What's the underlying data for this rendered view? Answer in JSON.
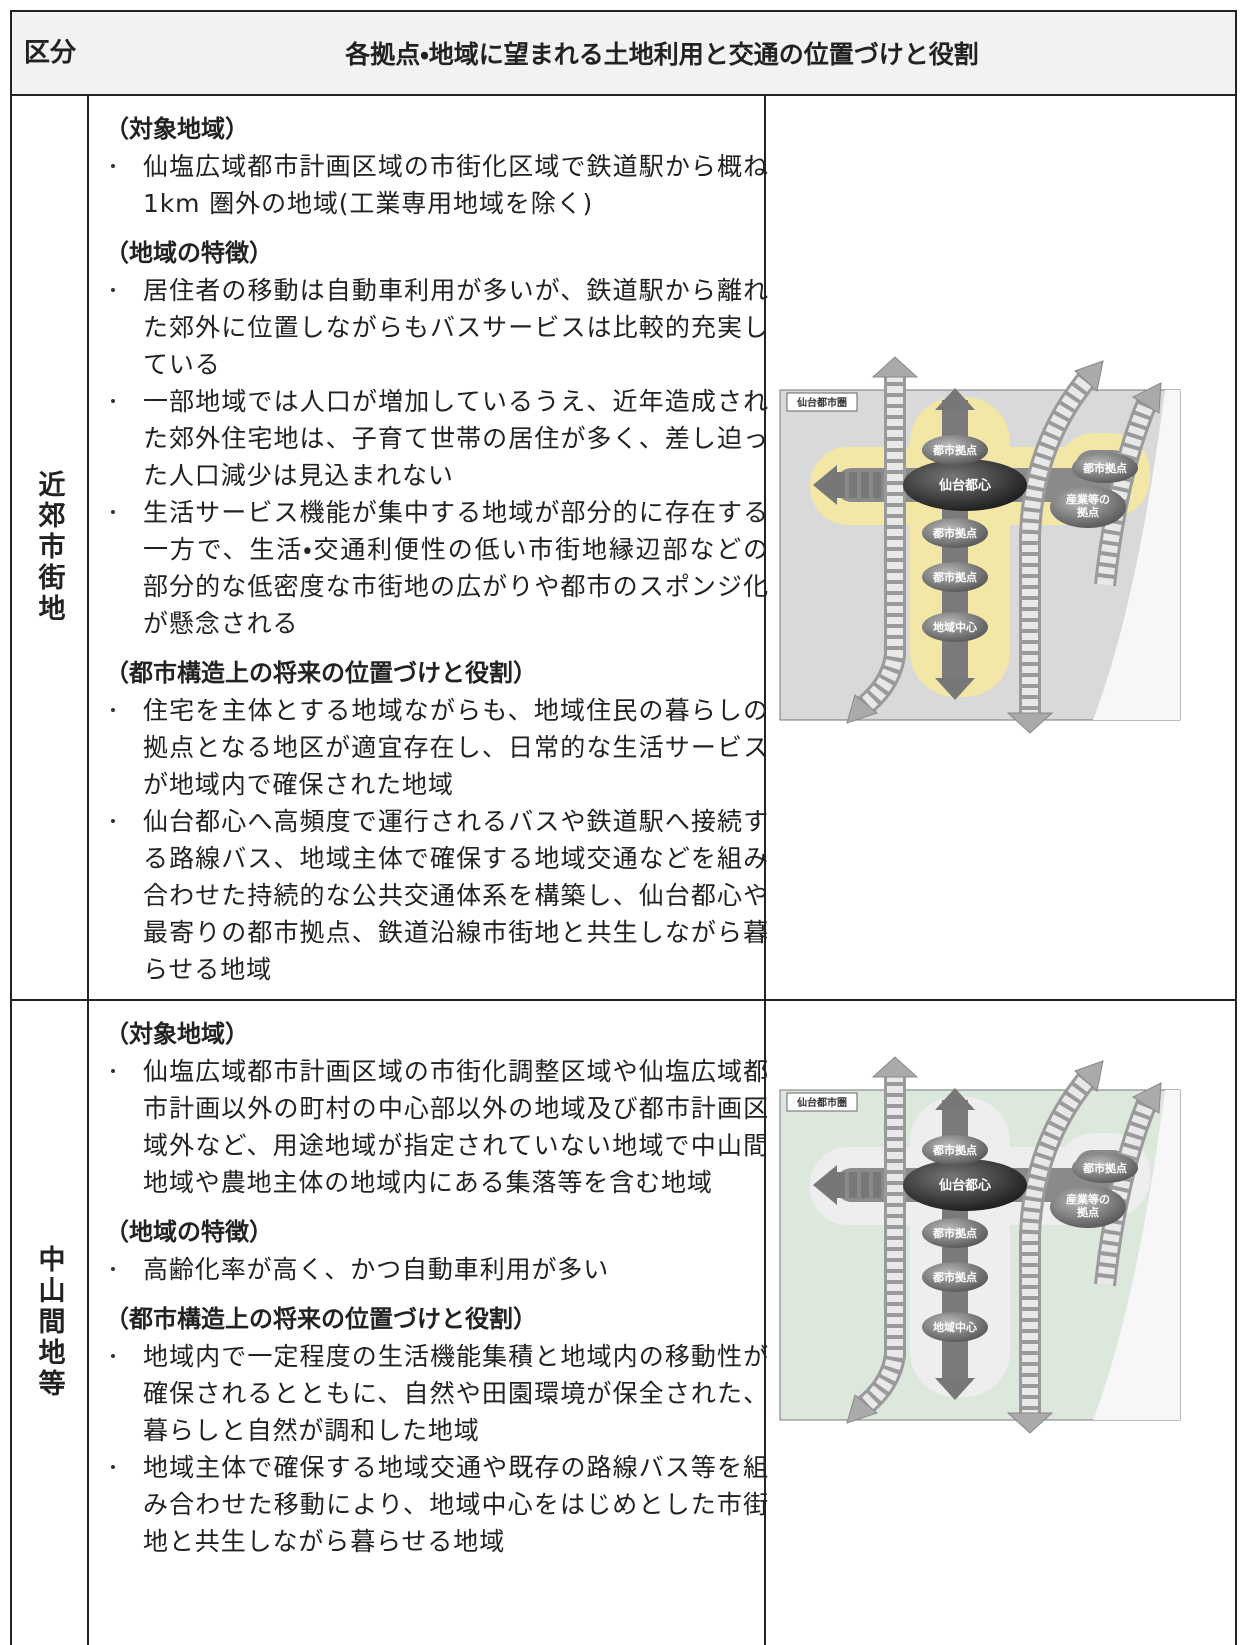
{
  "header": {
    "category": "区分",
    "title": "各拠点・地域に望まれる土地利用と交通の位置づけと役割"
  },
  "rows": [
    {
      "category": "近郊市街地",
      "sections": [
        {
          "heading": "（対象地域）",
          "items": [
            "仙塩広域都市計画区域の市街化区域で鉄道駅から概ね 1km 圏外の地域(工業専用地域を除く)"
          ]
        },
        {
          "heading": "（地域の特徴）",
          "items": [
            "居住者の移動は自動車利用が多いが、鉄道駅から離れた郊外に位置しながらもバスサービスは比較的充実している",
            "一部地域では人口が増加しているうえ、近年造成された郊外住宅地は、子育て世帯の居住が多く、差し迫った人口減少は見込まれない",
            "生活サービス機能が集中する地域が部分的に存在する一方で、生活・交通利便性の低い市街地縁辺部などの部分的な低密度な市街地の広がりや都市のスポンジ化が懸念される"
          ]
        },
        {
          "heading": "（都市構造上の将来の位置づけと役割）",
          "items": [
            "住宅を主体とする地域ながらも、地域住民の暮らしの拠点となる地区が適宜存在し、日常的な生活サービスが地域内で確保された地域",
            "仙台都心へ高頻度で運行されるバスや鉄道駅へ接続する路線バス、地域主体で確保する地域交通などを組み合わせた持続的な公共交通体系を構築し、仙台都心や最寄りの都市拠点、鉄道沿線市街地と共生しながら暮らせる地域"
          ]
        }
      ],
      "diagram": {
        "region": "仙台都市圏",
        "hub": "仙台都心",
        "nodes": [
          "都市拠点",
          "都市拠点",
          "都市拠点",
          "地域中心",
          "都市拠点"
        ],
        "industrial": [
          "産業等の",
          "拠点"
        ]
      }
    },
    {
      "category": "中山間地等",
      "sections": [
        {
          "heading": "（対象地域）",
          "items": [
            "仙塩広域都市計画区域の市街化調整区域や仙塩広域都市計画以外の町村の中心部以外の地域及び都市計画区域外など、用途地域が指定されていない地域で中山間地域や農地主体の地域内にある集落等を含む地域"
          ]
        },
        {
          "heading": "（地域の特徴）",
          "items": [
            "高齢化率が高く、かつ自動車利用が多い"
          ]
        },
        {
          "heading": "（都市構造上の将来の位置づけと役割）",
          "items": [
            "地域内で一定程度の生活機能集積と地域内の移動性が確保されるとともに、自然や田園環境が保全された、暮らしと自然が調和した地域",
            "地域主体で確保する地域交通や既存の路線バス等を組み合わせた移動により、地域中心をはじめとした市街地と共生しながら暮らせる地域"
          ]
        }
      ],
      "diagram": {
        "region": "仙台都市圏",
        "hub": "仙台都心",
        "nodes": [
          "都市拠点",
          "都市拠点",
          "都市拠点",
          "地域中心",
          "都市拠点"
        ],
        "industrial": [
          "産業等の",
          "拠点"
        ]
      }
    }
  ]
}
